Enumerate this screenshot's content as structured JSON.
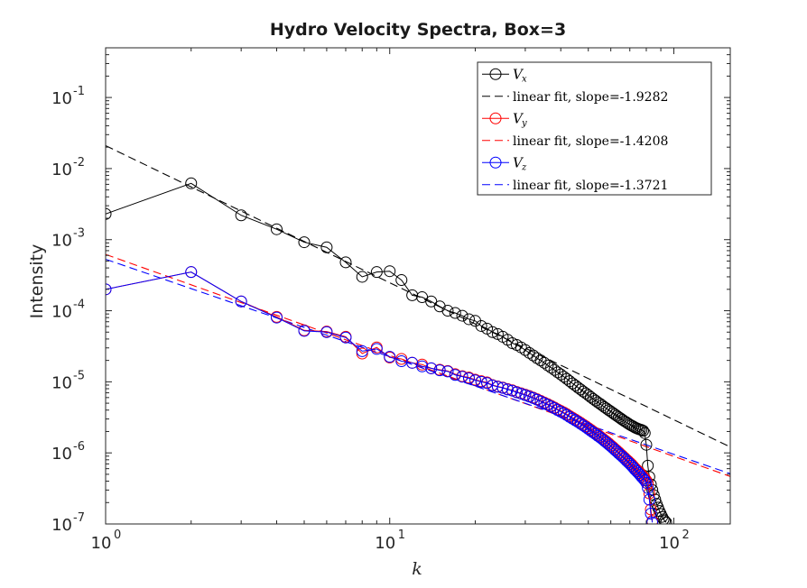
{
  "chart_data": {
    "type": "line",
    "title": "Hydro Velocity Spectra, Box=3",
    "xlabel": "k",
    "ylabel": "Intensity",
    "xscale": "log",
    "yscale": "log",
    "xlim": [
      1,
      158
    ],
    "ylim": [
      1e-07,
      0.5
    ],
    "x_ticks": [
      {
        "base": "10",
        "exp": "0",
        "value": 1
      },
      {
        "base": "10",
        "exp": "1",
        "value": 10
      },
      {
        "base": "10",
        "exp": "2",
        "value": 100
      }
    ],
    "y_ticks": [
      {
        "base": "10",
        "exp": "-7",
        "value": 1e-07
      },
      {
        "base": "10",
        "exp": "-6",
        "value": 1e-06
      },
      {
        "base": "10",
        "exp": "-5",
        "value": 1e-05
      },
      {
        "base": "10",
        "exp": "-4",
        "value": 0.0001
      },
      {
        "base": "10",
        "exp": "-3",
        "value": 0.001
      },
      {
        "base": "10",
        "exp": "-2",
        "value": 0.01
      },
      {
        "base": "10",
        "exp": "-1",
        "value": 0.1
      }
    ],
    "grid": false,
    "legend_position": "top-right",
    "series": [
      {
        "symbol": "V",
        "subscript": "x",
        "color": "#000000",
        "x": [
          1,
          2,
          3,
          4,
          5,
          6,
          7,
          8,
          9,
          10,
          11,
          12,
          13,
          14,
          15,
          16,
          17,
          18,
          19,
          20,
          21,
          22,
          23,
          24,
          25,
          26,
          27,
          28,
          29,
          30,
          31,
          32,
          33,
          34,
          35,
          36,
          37,
          38,
          39,
          40,
          41,
          42,
          43,
          44,
          45,
          46,
          47,
          48,
          49,
          50,
          51,
          52,
          53,
          54,
          55,
          56,
          57,
          58,
          59,
          60,
          61,
          62,
          63,
          64,
          65,
          66,
          67,
          68,
          69,
          70,
          71,
          72,
          73,
          74,
          75,
          76,
          77,
          78,
          79,
          80,
          81,
          82,
          83,
          84,
          85,
          86,
          87,
          88,
          89,
          90,
          91,
          92,
          93,
          94
        ],
        "y": [
          0.0023,
          0.0062,
          0.0022,
          0.0014,
          0.00092,
          0.00078,
          0.00048,
          0.0003,
          0.00035,
          0.00036,
          0.00027,
          0.000165,
          0.000155,
          0.000135,
          0.000115,
          0.0001,
          9.3e-05,
          8.5e-05,
          7.6e-05,
          7.2e-05,
          6.1e-05,
          5.6e-05,
          5e-05,
          4.7e-05,
          4.3e-05,
          3.9e-05,
          3.5e-05,
          3.3e-05,
          3.05e-05,
          2.8e-05,
          2.55e-05,
          2.35e-05,
          2.15e-05,
          2e-05,
          1.85e-05,
          1.7e-05,
          1.58e-05,
          1.47e-05,
          1.36e-05,
          1.27e-05,
          1.18e-05,
          1.1e-05,
          1.02e-05,
          9.5e-06,
          8.9e-06,
          8.3e-06,
          7.8e-06,
          7.3e-06,
          6.9e-06,
          6.5e-06,
          6.1e-06,
          5.75e-06,
          5.45e-06,
          5.15e-06,
          4.9e-06,
          4.65e-06,
          4.4e-06,
          4.2e-06,
          4e-06,
          3.82e-06,
          3.65e-06,
          3.48e-06,
          3.33e-06,
          3.18e-06,
          3.05e-06,
          2.92e-06,
          2.8e-06,
          2.7e-06,
          2.6e-06,
          2.5e-06,
          2.42e-06,
          2.35e-06,
          2.28e-06,
          2.22e-06,
          2.17e-06,
          2.13e-06,
          2.1e-06,
          2.05e-06,
          1.9e-06,
          1.3e-06,
          6.6e-07,
          4.6e-07,
          3.6e-07,
          3e-07,
          2.55e-07,
          2.2e-07,
          1.92e-07,
          1.7e-07,
          1.52e-07,
          1.38e-07,
          1.26e-07,
          1.16e-07,
          1.1e-07,
          1.05e-07
        ]
      },
      {
        "symbol": "V",
        "subscript": "y",
        "color": "#ff0000",
        "x": [
          1,
          2,
          3,
          4,
          5,
          6,
          7,
          8,
          9,
          10,
          11,
          12,
          13,
          14,
          15,
          16,
          17,
          18,
          19,
          20,
          21,
          22,
          23,
          24,
          25,
          26,
          27,
          28,
          29,
          30,
          31,
          32,
          33,
          34,
          35,
          36,
          37,
          38,
          39,
          40,
          41,
          42,
          43,
          44,
          45,
          46,
          47,
          48,
          49,
          50,
          51,
          52,
          53,
          54,
          55,
          56,
          57,
          58,
          59,
          60,
          61,
          62,
          63,
          64,
          65,
          66,
          67,
          68,
          69,
          70,
          71,
          72,
          73,
          74,
          75,
          76,
          77,
          78,
          79,
          80,
          81,
          82,
          83,
          84
        ],
        "y": [
          0.0002,
          0.00035,
          0.000135,
          8.2e-05,
          5.3e-05,
          5.1e-05,
          4.3e-05,
          2.5e-05,
          3.05e-05,
          2.2e-05,
          2.1e-05,
          1.85e-05,
          1.75e-05,
          1.55e-05,
          1.48e-05,
          1.42e-05,
          1.28e-05,
          1.2e-05,
          1.15e-05,
          1.07e-05,
          1.02e-05,
          9.8e-06,
          9e-06,
          8.6e-06,
          8.3e-06,
          7.9e-06,
          7.6e-06,
          7.2e-06,
          6.9e-06,
          6.6e-06,
          6.3e-06,
          6e-06,
          5.7e-06,
          5.4e-06,
          5.1e-06,
          4.85e-06,
          4.6e-06,
          4.35e-06,
          4.1e-06,
          3.9e-06,
          3.7e-06,
          3.5e-06,
          3.3e-06,
          3.12e-06,
          2.95e-06,
          2.8e-06,
          2.65e-06,
          2.5e-06,
          2.37e-06,
          2.24e-06,
          2.12e-06,
          2e-06,
          1.9e-06,
          1.8e-06,
          1.7e-06,
          1.61e-06,
          1.52e-06,
          1.44e-06,
          1.36e-06,
          1.28e-06,
          1.21e-06,
          1.14e-06,
          1.08e-06,
          1.02e-06,
          9.6e-07,
          9.1e-07,
          8.6e-07,
          8.1e-07,
          7.7e-07,
          7.3e-07,
          6.9e-07,
          6.5e-07,
          6.1e-07,
          5.8e-07,
          5.5e-07,
          5.2e-07,
          4.9e-07,
          4.65e-07,
          4.4e-07,
          4.1e-07,
          3.7e-07,
          2.7e-07,
          1.6e-07,
          1.1e-07
        ]
      },
      {
        "symbol": "V",
        "subscript": "z",
        "color": "#0000ff",
        "x": [
          1,
          2,
          3,
          4,
          5,
          6,
          7,
          8,
          9,
          10,
          11,
          12,
          13,
          14,
          15,
          16,
          17,
          18,
          19,
          20,
          21,
          22,
          23,
          24,
          25,
          26,
          27,
          28,
          29,
          30,
          31,
          32,
          33,
          34,
          35,
          36,
          37,
          38,
          39,
          40,
          41,
          42,
          43,
          44,
          45,
          46,
          47,
          48,
          49,
          50,
          51,
          52,
          53,
          54,
          55,
          56,
          57,
          58,
          59,
          60,
          61,
          62,
          63,
          64,
          65,
          66,
          67,
          68,
          69,
          70,
          71,
          72,
          73,
          74,
          75,
          76,
          77,
          78,
          79,
          80,
          81,
          82,
          83,
          84
        ],
        "y": [
          0.0002,
          0.00035,
          0.000135,
          8e-05,
          5.2e-05,
          5e-05,
          4.2e-05,
          2.7e-05,
          2.9e-05,
          2.25e-05,
          1.95e-05,
          1.85e-05,
          1.65e-05,
          1.55e-05,
          1.45e-05,
          1.4e-05,
          1.25e-05,
          1.18e-05,
          1.12e-05,
          1.05e-05,
          1e-05,
          9.6e-06,
          8.9e-06,
          8.5e-06,
          8.2e-06,
          7.8e-06,
          7.5e-06,
          7.1e-06,
          6.8e-06,
          6.5e-06,
          6.2e-06,
          5.9e-06,
          5.6e-06,
          5.3e-06,
          5e-06,
          4.75e-06,
          4.5e-06,
          4.25e-06,
          4e-06,
          3.8e-06,
          3.6e-06,
          3.4e-06,
          3.2e-06,
          3.03e-06,
          2.87e-06,
          2.72e-06,
          2.57e-06,
          2.43e-06,
          2.3e-06,
          2.17e-06,
          2.05e-06,
          1.94e-06,
          1.84e-06,
          1.74e-06,
          1.65e-06,
          1.56e-06,
          1.47e-06,
          1.39e-06,
          1.31e-06,
          1.24e-06,
          1.17e-06,
          1.1e-06,
          1.04e-06,
          9.8e-07,
          9.3e-07,
          8.8e-07,
          8.3e-07,
          7.8e-07,
          7.4e-07,
          7e-07,
          6.6e-07,
          6.2e-07,
          5.8e-07,
          5.5e-07,
          5.2e-07,
          4.9e-07,
          4.6e-07,
          4.35e-07,
          4.1e-07,
          3.8e-07,
          3.2e-07,
          2.2e-07,
          1.4e-07,
          1.05e-07
        ]
      }
    ],
    "fits": [
      {
        "label": "linear fit, slope=-1.9282",
        "color": "#000000",
        "slope": -1.9282,
        "intercept": 0.021
      },
      {
        "label": "linear fit, slope=-1.4208",
        "color": "#ff0000",
        "slope": -1.4208,
        "intercept": 0.00062
      },
      {
        "label": "linear fit, slope=-1.3721",
        "color": "#0000ff",
        "slope": -1.3721,
        "intercept": 0.00053
      }
    ]
  }
}
